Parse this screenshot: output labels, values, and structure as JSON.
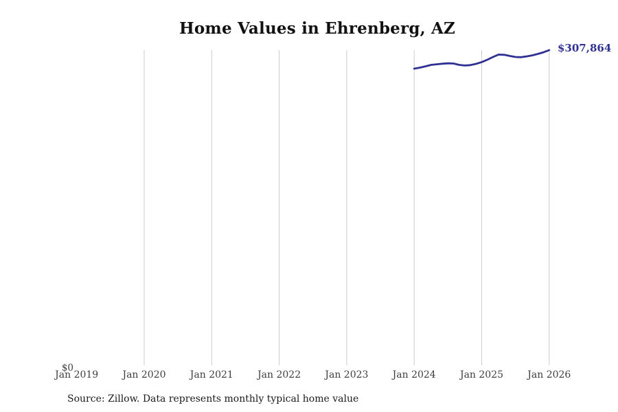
{
  "header": {
    "title": "Home Values in Ehrenberg, AZ"
  },
  "footer": {
    "source_note": "Source: Zillow. Data represents monthly typical home value"
  },
  "colors": {
    "line": "#2e3192",
    "end_label": "#2e3192",
    "gridline": "#cccccc",
    "tick_label": "#3d3d3d",
    "title": "#111111"
  },
  "chart_data": {
    "type": "line",
    "title": "Home Values in Ehrenberg, AZ",
    "xlabel": "",
    "ylabel": "",
    "ylim": [
      0,
      307864
    ],
    "grid": "vertical-only",
    "legend": "none",
    "x_axis": {
      "tick_labels": [
        "Jan 2019",
        "Jan 2020",
        "Jan 2021",
        "Jan 2022",
        "Jan 2023",
        "Jan 2024",
        "Jan 2025",
        "Jan 2026"
      ],
      "gridlines_at": [
        "Jan 2020",
        "Jan 2021",
        "Jan 2022",
        "Jan 2023",
        "Jan 2024",
        "Jan 2025",
        "Jan 2026"
      ]
    },
    "y_axis": {
      "tick_labels": [
        "$0"
      ]
    },
    "end_label": "$307,864",
    "series": [
      {
        "name": "Monthly typical home value",
        "color": "#2e3192",
        "x": [
          "2024-01",
          "2024-02",
          "2024-03",
          "2024-04",
          "2024-05",
          "2024-06",
          "2024-07",
          "2024-08",
          "2024-09",
          "2024-10",
          "2024-11",
          "2024-12",
          "2025-01",
          "2025-02",
          "2025-03",
          "2025-04",
          "2025-05",
          "2025-06",
          "2025-07",
          "2025-08",
          "2025-09",
          "2025-10",
          "2025-11",
          "2025-12",
          "2026-01"
        ],
        "values": [
          289800,
          290800,
          292100,
          293500,
          294100,
          294600,
          295000,
          294800,
          293500,
          292900,
          293300,
          294500,
          296200,
          298500,
          301200,
          303500,
          303300,
          302200,
          301200,
          301000,
          301800,
          302800,
          304200,
          305800,
          307864
        ]
      }
    ]
  }
}
